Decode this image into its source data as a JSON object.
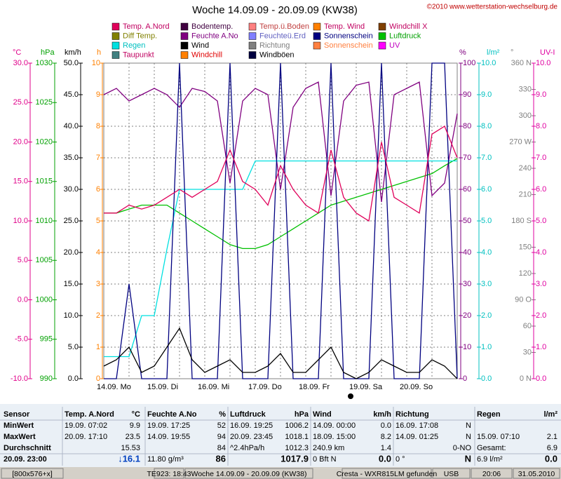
{
  "title": "Woche 14.09.09 - 20.09.09 (KW38)",
  "copyright": "©2010 www.wetterstation-wechselburg.de",
  "legend": [
    {
      "name": "Temp. A.Nord",
      "color": "#e0005a",
      "text": "#c00060"
    },
    {
      "name": "Diff Temp.",
      "color": "#808000",
      "text": "#808000"
    },
    {
      "name": "Regen",
      "color": "#00e0e0",
      "text": "#00c0c0"
    },
    {
      "name": "Taupunkt",
      "color": "#408080",
      "text": "#c00060"
    },
    {
      "name": "Bodentemp.",
      "color": "#400040",
      "text": "#400040"
    },
    {
      "name": "Feuchte A.No",
      "color": "#800080",
      "text": "#800080"
    },
    {
      "name": "Wind",
      "color": "#000000",
      "text": "#000000"
    },
    {
      "name": "Windchill",
      "color": "#ff8000",
      "text": "#e00000"
    },
    {
      "name": "Temp.ü.Boden",
      "color": "#ff8080",
      "text": "#c04040"
    },
    {
      "name": "Feuchteü.Erd",
      "color": "#8080ff",
      "text": "#6060c0"
    },
    {
      "name": "Richtung",
      "color": "#808080",
      "text": "#808080"
    },
    {
      "name": "Windböen",
      "color": "#000040",
      "text": "#000000"
    },
    {
      "name": "Temp. Wind",
      "color": "#ff8000",
      "text": "#c00060"
    },
    {
      "name": "Sonnenschein",
      "color": "#000080",
      "text": "#000080"
    },
    {
      "name": "Sonnenschein",
      "color": "#ff8040",
      "text": "#ff8040"
    },
    {
      "name": "Windchill X",
      "color": "#804000",
      "text": "#c00060"
    },
    {
      "name": "Luftdruck",
      "color": "#00c000",
      "text": "#00a000"
    },
    {
      "name": "UV",
      "color": "#ff00ff",
      "text": "#c000c0"
    }
  ],
  "chart_data": {
    "type": "line",
    "x_ticks": [
      "14.09. Mo",
      "15.09. Di",
      "16.09. Mi",
      "17.09. Do",
      "18.09. Fr",
      "19.09. Sa",
      "20.09. So"
    ],
    "axes": [
      {
        "unit": "°C",
        "color": "#e0008a",
        "lim": [
          -10,
          30
        ],
        "ticks": [
          {
            "value": 30,
            "label": "30.0"
          },
          {
            "value": 25,
            "label": "25.0"
          },
          {
            "value": 20,
            "label": "20.0"
          },
          {
            "value": 15,
            "label": "15.0"
          },
          {
            "value": 10,
            "label": "10.0"
          },
          {
            "value": 5,
            "label": "5.0"
          },
          {
            "value": 0,
            "label": "0.0"
          },
          {
            "value": -5,
            "label": "-5.0"
          },
          {
            "value": -10,
            "label": "-10.0"
          }
        ]
      },
      {
        "unit": "hPa",
        "color": "#00a000",
        "lim": [
          990,
          1030
        ],
        "ticks": [
          1030,
          1025,
          1020,
          1015,
          1010,
          1005,
          1000,
          995,
          990
        ]
      },
      {
        "unit": "km/h",
        "color": "#000000",
        "lim": [
          0,
          50
        ],
        "ticks": [
          {
            "value": 50,
            "label": "50.0"
          },
          {
            "value": 45,
            "label": "45.0"
          },
          {
            "value": 40,
            "label": "40.0"
          },
          {
            "value": 35,
            "label": "35.0"
          },
          {
            "value": 30,
            "label": "30.0"
          },
          {
            "value": 25,
            "label": "25.0"
          },
          {
            "value": 20,
            "label": "20.0"
          },
          {
            "value": 15,
            "label": "15.0"
          },
          {
            "value": 10,
            "label": "10.0"
          },
          {
            "value": 5,
            "label": "5.0"
          },
          {
            "value": 0,
            "label": "0.0"
          }
        ]
      },
      {
        "unit": "h",
        "color": "#ff8000",
        "lim": [
          0,
          10
        ],
        "ticks": [
          10,
          9,
          8,
          7,
          6,
          5,
          4,
          3,
          2,
          1,
          0
        ]
      },
      {
        "unit": "%",
        "color": "#800080",
        "lim": [
          0,
          100
        ],
        "ticks": [
          100,
          90,
          80,
          70,
          60,
          50,
          40,
          30,
          20,
          10,
          0
        ]
      },
      {
        "unit": "l/m²",
        "color": "#00c0c0",
        "lim": [
          0,
          10
        ],
        "ticks": [
          {
            "value": 10,
            "label": "10.0"
          },
          {
            "value": 9,
            "label": "9.0"
          },
          {
            "value": 8,
            "label": "8.0"
          },
          {
            "value": 7,
            "label": "7.0"
          },
          {
            "value": 6,
            "label": "6.0"
          },
          {
            "value": 5,
            "label": "5.0"
          },
          {
            "value": 4,
            "label": "4.0"
          },
          {
            "value": 3,
            "label": "3.0"
          },
          {
            "value": 2,
            "label": "2.0"
          },
          {
            "value": 1,
            "label": "1.0"
          },
          {
            "value": 0,
            "label": "0.0"
          }
        ]
      },
      {
        "unit": "°",
        "color": "#808080",
        "lim": [
          0,
          360
        ],
        "ticks": [
          {
            "value": 360,
            "label": "360 N"
          },
          330,
          300,
          {
            "value": 270,
            "label": "270 W"
          },
          240,
          210,
          {
            "value": 180,
            "label": "180 S"
          },
          150,
          120,
          {
            "value": 90,
            "label": "90 O"
          },
          60,
          30,
          {
            "value": 0,
            "label": "0 N"
          }
        ]
      },
      {
        "unit": "UV-I",
        "color": "#e000a0",
        "lim": [
          0,
          10
        ],
        "ticks": [
          {
            "value": 10,
            "label": "10.0"
          },
          {
            "value": 9,
            "label": "9.0"
          },
          {
            "value": 8,
            "label": "8.0"
          },
          {
            "value": 7,
            "label": "7.0"
          },
          {
            "value": 6,
            "label": "6.0"
          },
          {
            "value": 5,
            "label": "5.0"
          },
          {
            "value": 4,
            "label": "4.0"
          },
          {
            "value": 3,
            "label": "3.0"
          },
          {
            "value": 2,
            "label": "2.0"
          },
          {
            "value": 1,
            "label": "1.0"
          },
          {
            "value": 0,
            "label": "0.0"
          }
        ]
      }
    ],
    "series": [
      {
        "name": "Feuchte A.No",
        "axis": "%",
        "color": "#800080",
        "values": [
          90,
          92,
          88,
          90,
          92,
          90,
          86,
          92,
          91,
          88,
          62,
          88,
          92,
          90,
          60,
          86,
          92,
          94,
          58,
          88,
          93,
          94,
          56,
          90,
          92,
          94,
          58,
          62,
          84
        ]
      },
      {
        "name": "Luftdruck",
        "axis": "hPa",
        "color": "#00c000",
        "values": [
          1011,
          1011,
          1011.5,
          1012,
          1012,
          1012,
          1011,
          1010,
          1009,
          1008,
          1007,
          1006.5,
          1006.5,
          1007,
          1008,
          1009,
          1010,
          1011,
          1012,
          1012.5,
          1013,
          1013.5,
          1014,
          1014.5,
          1015,
          1015.5,
          1016,
          1017,
          1017.9
        ]
      },
      {
        "name": "Regen",
        "axis": "l/m²",
        "color": "#00e0e0",
        "values": [
          0.7,
          0.7,
          0.7,
          2.0,
          2.0,
          4.1,
          6.0,
          6.0,
          6.0,
          6.0,
          6.0,
          6.0,
          6.9,
          6.9,
          6.9,
          6.9,
          6.9,
          6.9,
          6.9,
          6.9,
          6.9,
          6.9,
          6.9,
          6.9,
          6.9,
          6.9,
          6.9,
          6.9,
          6.9
        ]
      },
      {
        "name": "Sonnenschein",
        "axis": "h",
        "color": "#000080",
        "values": [
          0,
          0,
          3,
          0,
          0,
          0,
          10,
          0,
          0,
          0,
          10,
          0,
          0,
          0,
          10,
          0,
          0,
          0,
          10,
          0,
          0,
          0,
          10,
          0,
          0,
          0,
          10,
          10,
          0
        ]
      },
      {
        "name": "Wind",
        "axis": "km/h",
        "color": "#000000",
        "values": [
          2,
          3,
          5,
          1,
          2,
          5,
          8,
          3,
          1,
          2,
          3,
          1,
          1,
          2,
          4,
          1,
          1,
          3,
          5,
          1,
          0,
          1,
          3,
          2,
          1,
          1,
          3,
          2,
          0
        ]
      },
      {
        "name": "Temp. A.Nord",
        "axis": "°C",
        "color": "#e0005a",
        "values": [
          11,
          11,
          12,
          11.5,
          12,
          13,
          14,
          13,
          14,
          15,
          19,
          15,
          14,
          12,
          17,
          14,
          12,
          11,
          19,
          13,
          11,
          10,
          20,
          13,
          12,
          11,
          21,
          22,
          18
        ]
      }
    ]
  },
  "table": {
    "header": [
      [
        "Sensor"
      ],
      [
        "Temp. A.Nord",
        "°C"
      ],
      [
        "Feuchte A.No",
        "%"
      ],
      [
        "Luftdruck",
        "hPa"
      ],
      [
        "Wind",
        "km/h"
      ],
      [
        "Richtung"
      ],
      [
        "Regen",
        "l/m²"
      ]
    ],
    "rows": [
      [
        [
          "MinWert"
        ],
        [
          "19.09. 07:02",
          "9.9"
        ],
        [
          "19.09. 17:25",
          "52"
        ],
        [
          "16.09. 19:25",
          "1006.2"
        ],
        [
          "14.09. 00:00",
          "0.0"
        ],
        [
          "16.09. 17:08",
          "N"
        ],
        []
      ],
      [
        [
          "MaxWert"
        ],
        [
          "20.09. 17:10",
          "23.5"
        ],
        [
          "14.09. 19:55",
          "94"
        ],
        [
          "20.09. 23:45",
          "1018.1"
        ],
        [
          "18.09. 15:00",
          "8.2"
        ],
        [
          "14.09. 01:25",
          "N"
        ],
        [
          "15.09. 07:10",
          "2.1"
        ]
      ],
      [
        [
          "Durchschnitt"
        ],
        [
          "15.53"
        ],
        [
          "84"
        ],
        [
          "^2.4hPa/h",
          "1012.3"
        ],
        [
          "240.9 km",
          "1.4"
        ],
        [
          "0-NO"
        ],
        [
          "Gesamt:",
          "6.9"
        ]
      ],
      [
        [
          "20.09. 23:00"
        ],
        [
          "↓16.1"
        ],
        [
          "11.80 g/m³",
          "86"
        ],
        [
          "1017.9"
        ],
        [
          "0 Bft N",
          "0.0"
        ],
        [
          "0 °",
          "N"
        ],
        [
          "6.9 l/m²",
          "0.0"
        ]
      ]
    ]
  },
  "status": [
    "[800x576+x]",
    "TE923: 18:43",
    "Woche 14.09.09 - 20.09.09 (KW38)",
    "Cresta - WXR815LM gefunden",
    "USB",
    "20:06",
    "31.05.2010"
  ]
}
